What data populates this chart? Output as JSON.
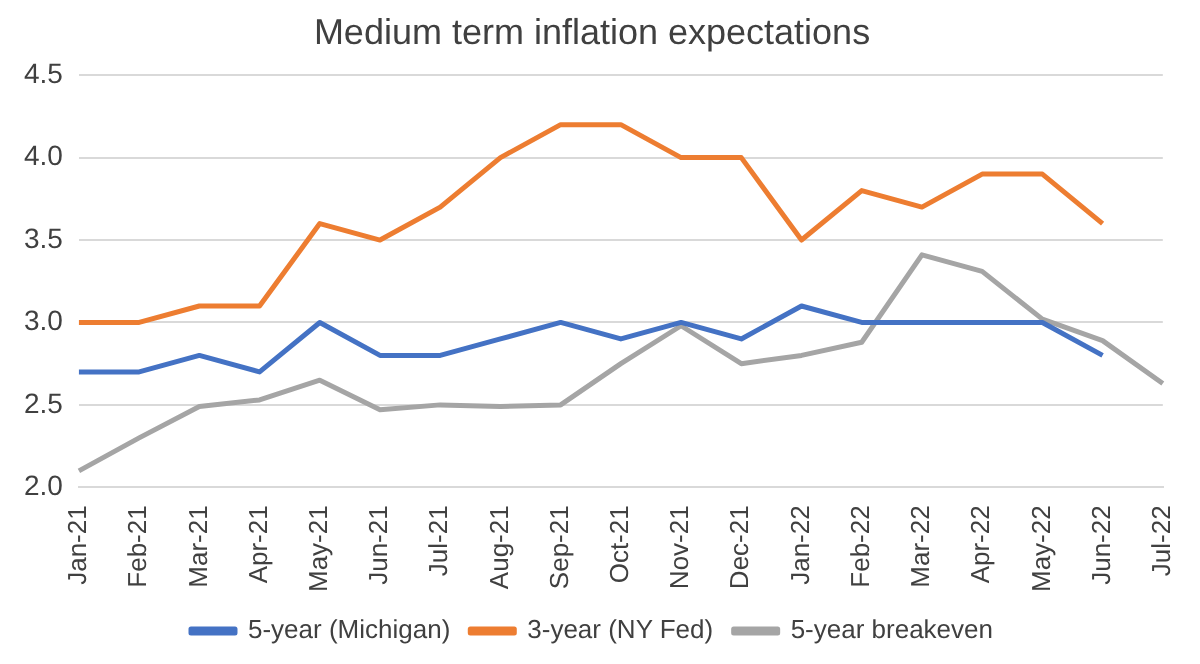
{
  "chart_data": {
    "type": "line",
    "title": "Medium term inflation expectations",
    "categories": [
      "Jan-21",
      "Feb-21",
      "Mar-21",
      "Apr-21",
      "May-21",
      "Jun-21",
      "Jul-21",
      "Aug-21",
      "Sep-21",
      "Oct-21",
      "Nov-21",
      "Dec-21",
      "Jan-22",
      "Feb-22",
      "Mar-22",
      "Apr-22",
      "May-22",
      "Jun-22",
      "Jul-22"
    ],
    "series": [
      {
        "name": "5-year (Michigan)",
        "color": "#4472c4",
        "values": [
          2.7,
          2.7,
          2.8,
          2.7,
          3.0,
          2.8,
          2.8,
          2.9,
          3.0,
          2.9,
          3.0,
          2.9,
          3.1,
          3.0,
          3.0,
          3.0,
          3.0,
          2.8,
          null
        ]
      },
      {
        "name": "3-year (NY Fed)",
        "color": "#ed7d31",
        "values": [
          3.0,
          3.0,
          3.1,
          3.1,
          3.6,
          3.5,
          3.7,
          4.0,
          4.2,
          4.2,
          4.0,
          4.0,
          3.5,
          3.8,
          3.7,
          3.9,
          3.9,
          3.6,
          null
        ]
      },
      {
        "name": "5-year breakeven",
        "color": "#a5a5a5",
        "values": [
          2.1,
          2.3,
          2.49,
          2.53,
          2.65,
          2.47,
          2.5,
          2.49,
          2.5,
          2.75,
          2.98,
          2.75,
          2.8,
          2.88,
          3.41,
          3.31,
          3.02,
          2.89,
          2.63
        ]
      }
    ],
    "ylim": [
      2.0,
      4.5
    ],
    "yticks": [
      {
        "value": 2.0,
        "label": "2.0"
      },
      {
        "value": 2.5,
        "label": "2.5"
      },
      {
        "value": 3.0,
        "label": "3.0"
      },
      {
        "value": 3.5,
        "label": "3.5"
      },
      {
        "value": 4.0,
        "label": "4.0"
      },
      {
        "value": 4.5,
        "label": "4.5"
      }
    ],
    "grid": "y",
    "legend": "bottom",
    "marker": "none",
    "line_style": "solid"
  }
}
